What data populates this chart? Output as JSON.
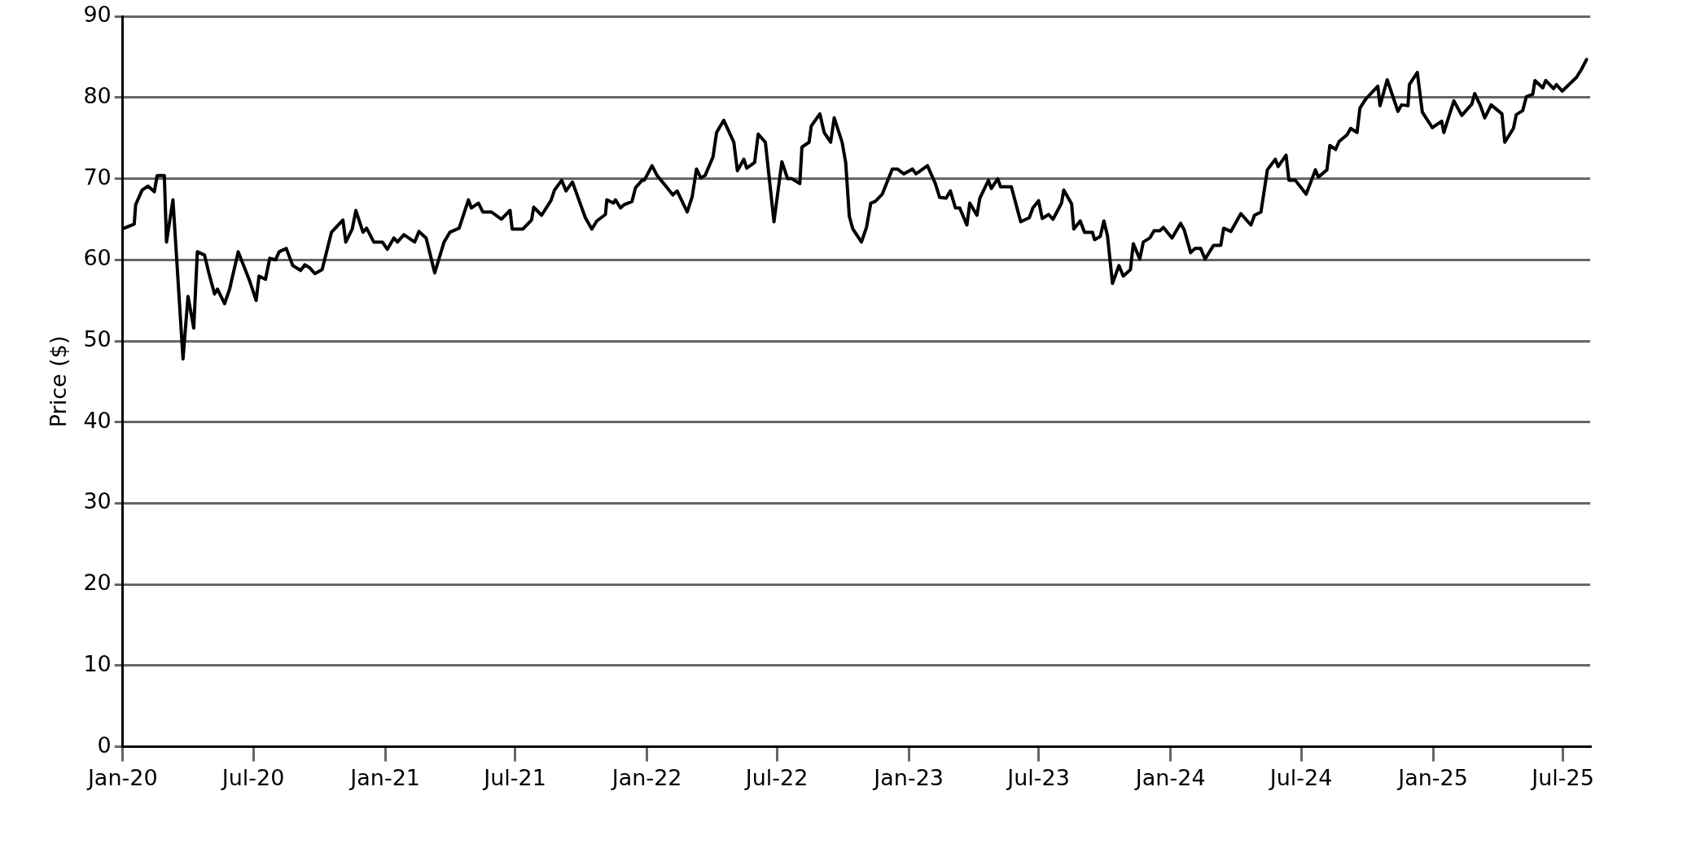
{
  "chart_data": {
    "type": "line",
    "ylabel": "Price ($)",
    "x": [
      "2020-01-03",
      "2020-01-17",
      "2020-01-19",
      "2020-01-28",
      "2020-02-05",
      "2020-02-14",
      "2020-02-18",
      "2020-02-28",
      "2020-03-02",
      "2020-03-11",
      "2020-03-25",
      "2020-04-01",
      "2020-04-09",
      "2020-04-14",
      "2020-04-24",
      "2020-04-30",
      "2020-05-08",
      "2020-05-12",
      "2020-05-22",
      "2020-05-29",
      "2020-06-10",
      "2020-06-26",
      "2020-07-05",
      "2020-07-09",
      "2020-07-18",
      "2020-07-24",
      "2020-08-01",
      "2020-08-06",
      "2020-08-16",
      "2020-08-25",
      "2020-09-05",
      "2020-09-11",
      "2020-09-18",
      "2020-09-25",
      "2020-10-05",
      "2020-10-18",
      "2020-11-03",
      "2020-11-07",
      "2020-11-16",
      "2020-11-21",
      "2020-12-01",
      "2020-12-06",
      "2020-12-16",
      "2020-12-28",
      "2021-01-04",
      "2021-01-13",
      "2021-01-18",
      "2021-01-27",
      "2021-02-11",
      "2021-02-17",
      "2021-02-27",
      "2021-03-11",
      "2021-03-24",
      "2021-04-01",
      "2021-04-14",
      "2021-04-27",
      "2021-05-01",
      "2021-05-11",
      "2021-05-17",
      "2021-05-29",
      "2021-06-12",
      "2021-06-24",
      "2021-06-27",
      "2021-07-12",
      "2021-07-24",
      "2021-07-27",
      "2021-08-07",
      "2021-08-20",
      "2021-08-25",
      "2021-09-04",
      "2021-09-10",
      "2021-09-19",
      "2021-10-07",
      "2021-10-16",
      "2021-10-23",
      "2021-11-04",
      "2021-11-06",
      "2021-11-15",
      "2021-11-18",
      "2021-11-25",
      "2021-11-30",
      "2021-12-11",
      "2021-12-16",
      "2021-12-25",
      "2021-12-28",
      "2022-01-08",
      "2022-01-15",
      "2022-01-28",
      "2022-02-06",
      "2022-02-12",
      "2022-02-26",
      "2022-03-05",
      "2022-03-11",
      "2022-03-17",
      "2022-03-23",
      "2022-04-03",
      "2022-04-08",
      "2022-04-18",
      "2022-05-02",
      "2022-05-07",
      "2022-05-16",
      "2022-05-20",
      "2022-05-31",
      "2022-06-05",
      "2022-06-15",
      "2022-06-27",
      "2022-07-08",
      "2022-07-16",
      "2022-07-22",
      "2022-08-02",
      "2022-08-05",
      "2022-08-15",
      "2022-08-18",
      "2022-08-30",
      "2022-09-05",
      "2022-09-14",
      "2022-09-19",
      "2022-09-30",
      "2022-10-05",
      "2022-10-10",
      "2022-10-15",
      "2022-10-27",
      "2022-11-03",
      "2022-11-09",
      "2022-11-15",
      "2022-11-25",
      "2022-11-30",
      "2022-12-09",
      "2022-12-16",
      "2022-12-25",
      "2023-01-06",
      "2023-01-11",
      "2023-01-27",
      "2023-02-07",
      "2023-02-13",
      "2023-02-22",
      "2023-02-28",
      "2023-03-07",
      "2023-03-13",
      "2023-03-23",
      "2023-03-27",
      "2023-04-06",
      "2023-04-10",
      "2023-04-22",
      "2023-04-26",
      "2023-05-05",
      "2023-05-09",
      "2023-05-24",
      "2023-06-06",
      "2023-06-18",
      "2023-06-23",
      "2023-07-01",
      "2023-07-06",
      "2023-07-15",
      "2023-07-21",
      "2023-08-02",
      "2023-08-05",
      "2023-08-16",
      "2023-08-19",
      "2023-08-28",
      "2023-09-03",
      "2023-09-14",
      "2023-09-17",
      "2023-09-25",
      "2023-09-30",
      "2023-10-05",
      "2023-10-12",
      "2023-10-21",
      "2023-10-27",
      "2023-11-06",
      "2023-11-10",
      "2023-11-19",
      "2023-11-24",
      "2023-12-03",
      "2023-12-09",
      "2023-12-17",
      "2023-12-22",
      "2024-01-03",
      "2024-01-15",
      "2024-01-20",
      "2024-01-29",
      "2024-02-04",
      "2024-02-12",
      "2024-02-18",
      "2024-03-01",
      "2024-03-11",
      "2024-03-15",
      "2024-03-25",
      "2024-04-08",
      "2024-04-22",
      "2024-04-27",
      "2024-05-06",
      "2024-05-15",
      "2024-05-26",
      "2024-05-30",
      "2024-06-10",
      "2024-06-14",
      "2024-06-23",
      "2024-07-08",
      "2024-07-21",
      "2024-07-25",
      "2024-08-06",
      "2024-08-10",
      "2024-08-18",
      "2024-08-23",
      "2024-09-03",
      "2024-09-08",
      "2024-09-17",
      "2024-09-21",
      "2024-09-29",
      "2024-10-16",
      "2024-10-19",
      "2024-10-29",
      "2024-11-13",
      "2024-11-18",
      "2024-11-27",
      "2024-11-29",
      "2024-12-10",
      "2024-12-17",
      "2024-12-31",
      "2025-01-13",
      "2025-01-16",
      "2025-01-30",
      "2025-02-10",
      "2025-02-24",
      "2025-02-28",
      "2025-03-08",
      "2025-03-14",
      "2025-03-23",
      "2025-04-07",
      "2025-04-11",
      "2025-04-23",
      "2025-04-27",
      "2025-05-06",
      "2025-05-11",
      "2025-05-20",
      "2025-05-23",
      "2025-06-03",
      "2025-06-07",
      "2025-06-18",
      "2025-06-22",
      "2025-06-30",
      "2025-07-20",
      "2025-07-27",
      "2025-08-03"
    ],
    "series": [
      {
        "color": "#000000",
        "values": [
          63.9,
          64.4,
          66.8,
          68.6,
          69.1,
          68.4,
          70.4,
          70.4,
          62.2,
          67.4,
          47.8,
          55.5,
          51.6,
          61.0,
          60.6,
          58.4,
          55.8,
          56.4,
          54.6,
          56.4,
          61.0,
          57.4,
          55.0,
          58.0,
          57.6,
          60.2,
          60.0,
          61.0,
          61.4,
          59.3,
          58.7,
          59.4,
          59.0,
          58.3,
          58.8,
          63.4,
          64.9,
          62.2,
          63.8,
          66.1,
          63.4,
          63.9,
          62.2,
          62.2,
          61.3,
          62.7,
          62.2,
          63.1,
          62.2,
          63.5,
          62.7,
          58.4,
          62.2,
          63.4,
          63.9,
          67.4,
          66.4,
          67.0,
          65.9,
          65.9,
          65.0,
          66.1,
          63.8,
          63.8,
          64.9,
          66.5,
          65.5,
          67.3,
          68.6,
          69.8,
          68.5,
          69.6,
          65.2,
          63.8,
          64.8,
          65.6,
          67.4,
          67.0,
          67.4,
          66.4,
          66.8,
          67.2,
          68.9,
          69.8,
          69.8,
          71.6,
          70.4,
          69.0,
          68.0,
          68.5,
          65.9,
          67.8,
          71.2,
          70.1,
          70.4,
          72.7,
          75.7,
          77.2,
          74.5,
          71.0,
          72.4,
          71.3,
          72.0,
          75.5,
          74.5,
          64.7,
          72.1,
          70.0,
          70.0,
          69.4,
          73.9,
          74.5,
          76.5,
          78.0,
          75.7,
          74.5,
          77.5,
          74.5,
          72.0,
          65.4,
          63.8,
          62.2,
          64.0,
          67.0,
          67.2,
          68.1,
          69.2,
          71.2,
          71.2,
          70.6,
          71.2,
          70.6,
          71.6,
          69.4,
          67.7,
          67.6,
          68.5,
          66.4,
          66.4,
          64.3,
          67.0,
          65.5,
          67.6,
          69.8,
          68.8,
          70.0,
          69.0,
          69.0,
          64.7,
          65.2,
          66.4,
          67.3,
          65.1,
          65.6,
          65.0,
          67.0,
          68.6,
          66.9,
          63.8,
          64.8,
          63.4,
          63.4,
          62.5,
          62.9,
          64.8,
          63.0,
          57.1,
          59.3,
          58.0,
          58.8,
          62.0,
          60.1,
          62.2,
          62.7,
          63.6,
          63.6,
          64.0,
          62.7,
          64.5,
          63.7,
          60.9,
          61.4,
          61.4,
          60.1,
          61.8,
          61.8,
          63.9,
          63.5,
          65.7,
          64.3,
          65.5,
          65.9,
          71.1,
          72.4,
          71.5,
          72.9,
          69.8,
          69.8,
          68.1,
          71.1,
          70.2,
          71.1,
          74.1,
          73.6,
          74.6,
          75.4,
          76.2,
          75.7,
          78.7,
          79.8,
          81.4,
          79.0,
          82.2,
          78.3,
          79.1,
          79.0,
          81.6,
          83.1,
          78.2,
          76.3,
          77.1,
          75.7,
          79.6,
          77.8,
          79.2,
          80.5,
          79.0,
          77.5,
          79.1,
          78.0,
          74.5,
          76.2,
          77.9,
          78.4,
          80.1,
          80.4,
          82.1,
          81.2,
          82.1,
          81.1,
          81.6,
          80.8,
          82.5,
          83.5,
          84.7
        ]
      }
    ],
    "xlim": [
      "2020-01-01",
      "2025-08-08"
    ],
    "xticks": [
      {
        "value": "2020-01-01",
        "label": "Jan-20"
      },
      {
        "value": "2020-07-01",
        "label": "Jul-20"
      },
      {
        "value": "2021-01-01",
        "label": "Jan-21"
      },
      {
        "value": "2021-07-01",
        "label": "Jul-21"
      },
      {
        "value": "2022-01-01",
        "label": "Jan-22"
      },
      {
        "value": "2022-07-01",
        "label": "Jul-22"
      },
      {
        "value": "2023-01-01",
        "label": "Jan-23"
      },
      {
        "value": "2023-07-01",
        "label": "Jul-23"
      },
      {
        "value": "2024-01-01",
        "label": "Jan-24"
      },
      {
        "value": "2024-07-01",
        "label": "Jul-24"
      },
      {
        "value": "2025-01-01",
        "label": "Jan-25"
      },
      {
        "value": "2025-07-01",
        "label": "Jul-25"
      }
    ],
    "ylim": [
      0,
      90
    ],
    "yticks": [
      0,
      10,
      20,
      30,
      40,
      50,
      60,
      70,
      80,
      90
    ],
    "grid": "y",
    "legend": false,
    "marker": "none",
    "line_style": "solid"
  }
}
